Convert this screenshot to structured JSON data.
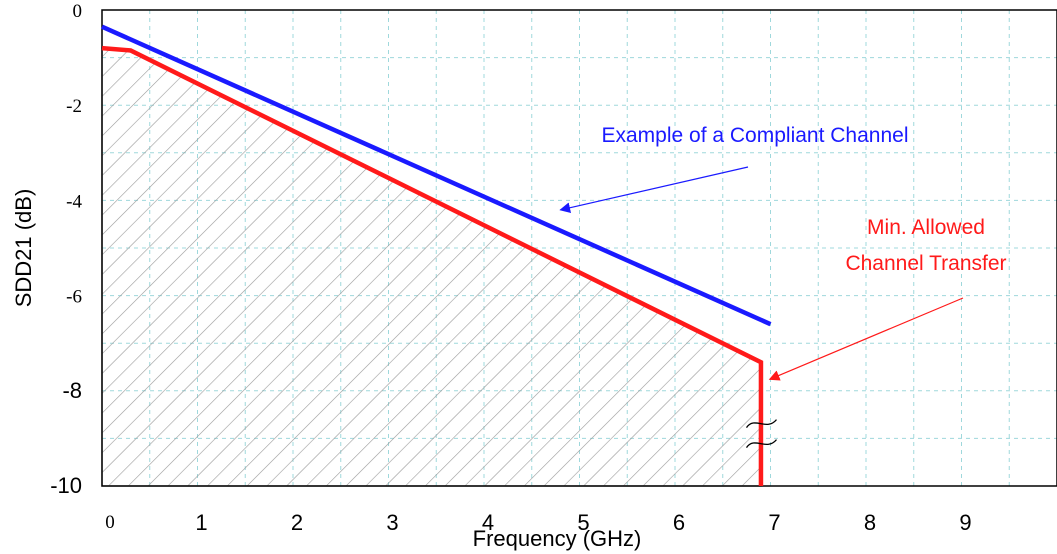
{
  "chart_data": {
    "type": "line",
    "title": "",
    "xlabel": "Frequency (GHz)",
    "ylabel": "SDD21 (dB)",
    "xlim": [
      0,
      10
    ],
    "ylim": [
      -10,
      0
    ],
    "x_ticks": [
      {
        "value": 0,
        "label": "0",
        "style": "serif"
      },
      {
        "value": 1,
        "label": "1",
        "style": "sans"
      },
      {
        "value": 2,
        "label": "2",
        "style": "sans"
      },
      {
        "value": 3,
        "label": "3",
        "style": "sans"
      },
      {
        "value": 4,
        "label": "4",
        "style": "sans"
      },
      {
        "value": 5,
        "label": "5",
        "style": "sans"
      },
      {
        "value": 6,
        "label": "6",
        "style": "sans"
      },
      {
        "value": 7,
        "label": "7",
        "style": "sans"
      },
      {
        "value": 8,
        "label": "8",
        "style": "sans"
      },
      {
        "value": 9,
        "label": "9",
        "style": "sans"
      }
    ],
    "y_ticks": [
      {
        "value": 0,
        "label": "0",
        "style": "serif"
      },
      {
        "value": -2,
        "label": "-2",
        "style": "serif"
      },
      {
        "value": -4,
        "label": "-4",
        "style": "serif"
      },
      {
        "value": -6,
        "label": "-6",
        "style": "serif"
      },
      {
        "value": -8,
        "label": "-8",
        "style": "sans"
      },
      {
        "value": -10,
        "label": "-10",
        "style": "sans"
      }
    ],
    "grid": true,
    "series": [
      {
        "name": "Example of a Compliant Channel",
        "color": "#1a1aff",
        "x": [
          0,
          7.0
        ],
        "y": [
          -0.35,
          -6.6
        ]
      },
      {
        "name": "Min. Allowed Channel Transfer",
        "color": "#ff1a1a",
        "x": [
          0,
          0.3,
          6.9,
          6.9
        ],
        "y": [
          -0.8,
          -0.85,
          -7.4,
          -10
        ],
        "shaded_region": "below",
        "shade_color": "#aaaaaa"
      }
    ],
    "annotations": [
      {
        "text": "Example of a Compliant Channel",
        "color": "#1a1aff",
        "points_to": {
          "x": 4.8,
          "y": -4.2
        }
      },
      {
        "text": "Min. Allowed",
        "color": "#ff1a1a",
        "points_to": {
          "x": 6.95,
          "y": -7.8
        }
      },
      {
        "text": "Channel Transfer",
        "color": "#ff1a1a"
      }
    ],
    "break_marker": {
      "x": 7.0,
      "y": -8.9,
      "symbol": "≈"
    }
  }
}
